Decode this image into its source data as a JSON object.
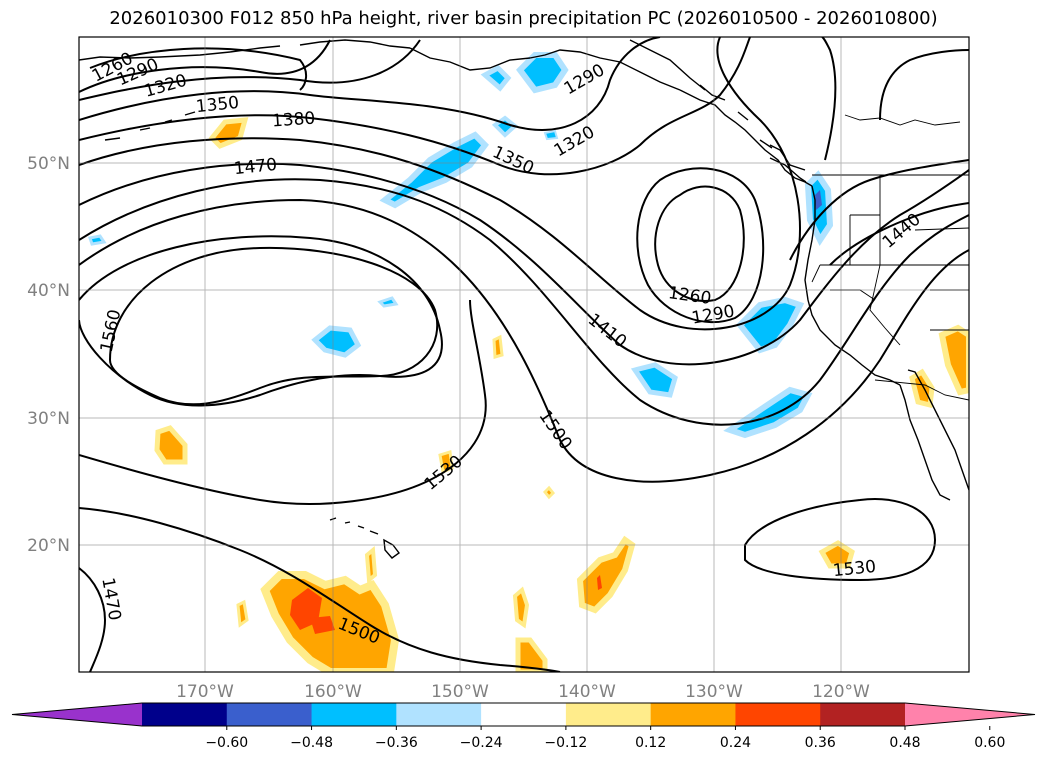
{
  "title": "2026010300 F012 850 hPa height, river basin precipitation PC (2026010500 - 2026010800)",
  "lat_labels": [
    "50°N",
    "40°N",
    "30°N",
    "20°N"
  ],
  "lon_labels": [
    "170°W",
    "160°W",
    "150°W",
    "140°W",
    "130°W",
    "120°W"
  ],
  "contour_labels": [
    "1260",
    "1290",
    "1320",
    "1350",
    "1380",
    "1470",
    "1290",
    "1320",
    "1350",
    "1440",
    "1260",
    "1290",
    "1410",
    "1500",
    "1560",
    "1530",
    "1530",
    "1470",
    "1500"
  ],
  "colorbar": {
    "ticks": [
      "−0.60",
      "−0.48",
      "−0.36",
      "−0.24",
      "−0.12",
      "0.12",
      "0.24",
      "0.36",
      "0.48",
      "0.60"
    ],
    "colors": [
      "#9932cc",
      "#00008b",
      "#3a5fcd",
      "#00bfff",
      "#b0e2ff",
      "#ffffff",
      "#ffec8b",
      "#ffa500",
      "#ff4500",
      "#b22222",
      "#ff82ab"
    ]
  }
}
